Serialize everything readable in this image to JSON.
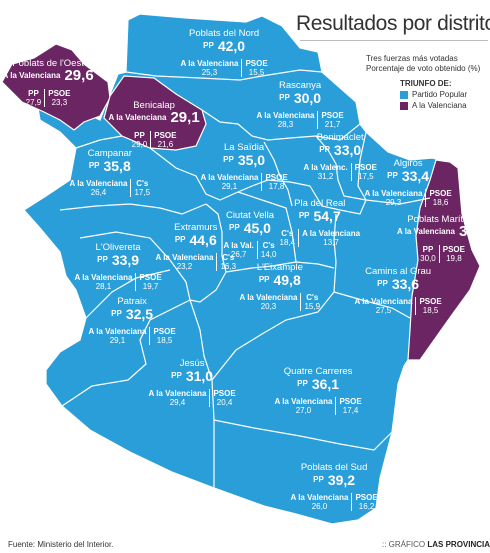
{
  "title": "Resultados por distritos",
  "subtitle": [
    "Tres fuerzas más votadas",
    "Porcentaje de voto obtenido (%)"
  ],
  "legend": {
    "heading": "TRIUNFO DE:",
    "items": [
      {
        "label": "Partido Popular",
        "color": "#2a9ed8"
      },
      {
        "label": "A la Valenciana",
        "color": "#6b2563"
      }
    ]
  },
  "colors": {
    "pp": "#2a9ed8",
    "valenciana": "#6b2563",
    "border": "#ffffff"
  },
  "districts": [
    {
      "id": "poblats-nord",
      "name": "Poblats del Nord",
      "winner_party": "PP",
      "winner_pct": "42,0",
      "runners": [
        {
          "party": "A la Valenciana",
          "pct": "25,3"
        },
        {
          "party": "PSOE",
          "pct": "15,5"
        }
      ]
    },
    {
      "id": "poblats-oest",
      "name": "Poblats de l'Oest",
      "winner_party": "A la Valenciana",
      "winner_pct": "29,6",
      "runners": [
        {
          "party": "PP",
          "pct": "27,9"
        },
        {
          "party": "PSOE",
          "pct": "23,3"
        }
      ]
    },
    {
      "id": "benicalap",
      "name": "Benicalap",
      "winner_party": "A la Valenciana",
      "winner_pct": "29,1",
      "runners": [
        {
          "party": "PP",
          "pct": "29,0"
        },
        {
          "party": "PSOE",
          "pct": "21,6"
        }
      ]
    },
    {
      "id": "rascanya",
      "name": "Rascanya",
      "winner_party": "PP",
      "winner_pct": "30,0",
      "runners": [
        {
          "party": "A la Valenciana",
          "pct": "28,3"
        },
        {
          "party": "PSOE",
          "pct": "21,7"
        }
      ]
    },
    {
      "id": "campanar",
      "name": "Campanar",
      "winner_party": "PP",
      "winner_pct": "35,8",
      "runners": [
        {
          "party": "A la Valenciana",
          "pct": "26,4"
        },
        {
          "party": "C's",
          "pct": "17,5"
        }
      ]
    },
    {
      "id": "la-saidia",
      "name": "La Saïdia",
      "winner_party": "PP",
      "winner_pct": "35,0",
      "runners": [
        {
          "party": "A la Valenciana",
          "pct": "29,1"
        },
        {
          "party": "PSOE",
          "pct": "17,8"
        }
      ]
    },
    {
      "id": "benimaclet",
      "name": "Benimaclet",
      "winner_party": "PP",
      "winner_pct": "33,0",
      "runners": [
        {
          "party": "A la Valenc.",
          "pct": "31,2"
        },
        {
          "party": "PSOE",
          "pct": "17,5"
        }
      ]
    },
    {
      "id": "algiros",
      "name": "Algirós",
      "winner_party": "PP",
      "winner_pct": "33,4",
      "runners": [
        {
          "party": "A la Valenciana",
          "pct": "29,3"
        },
        {
          "party": "PSOE",
          "pct": "18,6"
        }
      ]
    },
    {
      "id": "ciutat-vella",
      "name": "Ciutat Vella",
      "winner_party": "PP",
      "winner_pct": "45,0",
      "runners": [
        {
          "party": "A la Val.",
          "pct": "26,7"
        },
        {
          "party": "C's",
          "pct": "14,0"
        }
      ]
    },
    {
      "id": "pla-del-real",
      "name": "Pla del Real",
      "winner_party": "PP",
      "winner_pct": "54,7",
      "runners": [
        {
          "party": "C's",
          "pct": "18,4"
        },
        {
          "party": "A la Valenciana",
          "pct": "13,7"
        }
      ]
    },
    {
      "id": "extramurs",
      "name": "Extramurs",
      "winner_party": "PP",
      "winner_pct": "44,6",
      "runners": [
        {
          "party": "A la Valenciana",
          "pct": "23,2"
        },
        {
          "party": "C's",
          "pct": "16,3"
        }
      ]
    },
    {
      "id": "lolivereta",
      "name": "L'Olivereta",
      "winner_party": "PP",
      "winner_pct": "33,9",
      "runners": [
        {
          "party": "A la Valenciana",
          "pct": "28,1"
        },
        {
          "party": "PSOE",
          "pct": "19,7"
        }
      ]
    },
    {
      "id": "poblats-maritims",
      "name": "Poblats Marítims",
      "winner_party": "A la Valenciana",
      "winner_pct": "31,8",
      "runners": [
        {
          "party": "PP",
          "pct": "30,0"
        },
        {
          "party": "PSOE",
          "pct": "19,8"
        }
      ]
    },
    {
      "id": "leixample",
      "name": "L'Eixample",
      "winner_party": "PP",
      "winner_pct": "49,8",
      "runners": [
        {
          "party": "A la Valenciana",
          "pct": "20,3"
        },
        {
          "party": "C's",
          "pct": "15,9"
        }
      ]
    },
    {
      "id": "camins-al-grau",
      "name": "Camins al Grau",
      "winner_party": "PP",
      "winner_pct": "33,6",
      "runners": [
        {
          "party": "A la Valenciana",
          "pct": "27,5"
        },
        {
          "party": "PSOE",
          "pct": "18,5"
        }
      ]
    },
    {
      "id": "patraix",
      "name": "Patraix",
      "winner_party": "PP",
      "winner_pct": "32,5",
      "runners": [
        {
          "party": "A la Valenciana",
          "pct": "29,1"
        },
        {
          "party": "PSOE",
          "pct": "18,5"
        }
      ]
    },
    {
      "id": "jesus",
      "name": "Jesús",
      "winner_party": "PP",
      "winner_pct": "31,0",
      "runners": [
        {
          "party": "A la Valenciana",
          "pct": "29,4"
        },
        {
          "party": "PSOE",
          "pct": "20,4"
        }
      ]
    },
    {
      "id": "quatre-carreres",
      "name": "Quatre Carreres",
      "winner_party": "PP",
      "winner_pct": "36,1",
      "runners": [
        {
          "party": "A la Valenciana",
          "pct": "27,0"
        },
        {
          "party": "PSOE",
          "pct": "17,4"
        }
      ]
    },
    {
      "id": "poblats-sud",
      "name": "Poblats del Sud",
      "winner_party": "PP",
      "winner_pct": "39,2",
      "runners": [
        {
          "party": "A la Valenciana",
          "pct": "26,0"
        },
        {
          "party": "PSOE",
          "pct": "16,2"
        }
      ]
    }
  ],
  "source": "Fuente: Ministerio del Interior.",
  "credit_prefix": ":: GRÁFICO",
  "credit_brand": "LAS PROVINCIAS"
}
